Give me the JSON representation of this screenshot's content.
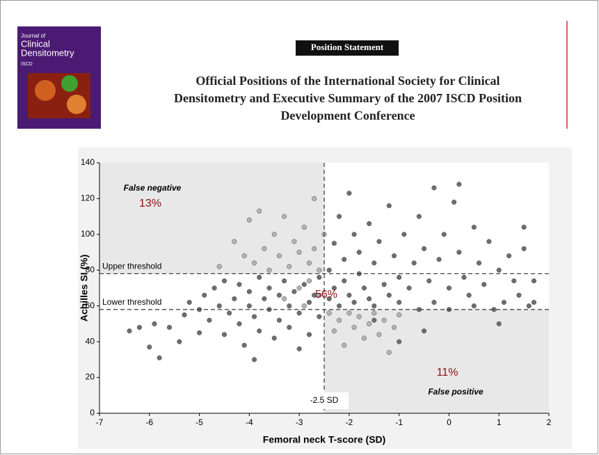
{
  "header": {
    "journal_cover": {
      "line1": "Journal of",
      "line2": "Clinical",
      "line3": "Densitometry",
      "society": "ISCD"
    },
    "label": "Position Statement",
    "title_lines": [
      "Official Positions of the International Society for Clinical",
      "Densitometry and Executive Summary of the 2007 ISCD Position",
      "Development Conference"
    ]
  },
  "chart_data": {
    "type": "scatter",
    "x_label": "Femoral neck T-score (SD)",
    "y_label": "Achilles SI (%)",
    "xlim": [
      -7,
      2
    ],
    "xticks": [
      -7,
      -6,
      -5,
      -4,
      -3,
      -2,
      -1,
      0,
      1,
      2
    ],
    "ylim": [
      0,
      140
    ],
    "yticks": [
      0,
      20,
      40,
      60,
      80,
      100,
      120,
      140
    ],
    "thresholds": {
      "upper": 78,
      "lower": 58,
      "tscore": -2.5
    },
    "threshold_labels": {
      "upper": "Upper threshold",
      "lower": "Lower threshold",
      "tscore": "-2.5 SD"
    },
    "annotations": [
      "False negative",
      "13%",
      "56%",
      "11%",
      "False positive"
    ],
    "series": [
      {
        "color": "#b4b4b4",
        "x": [
          -4.6,
          -4.3,
          -4.1,
          -4.0,
          -3.9,
          -3.8,
          -3.7,
          -3.6,
          -3.5,
          -3.4,
          -3.3,
          -3.2,
          -3.1,
          -3.0,
          -2.9,
          -2.8,
          -2.7,
          -2.7,
          -2.6,
          -2.5,
          -2.4,
          -2.3,
          -2.2,
          -2.1,
          -2.0,
          -1.9,
          -1.8,
          -1.7,
          -1.6,
          -1.5,
          -1.4,
          -1.3,
          -1.2,
          -1.1,
          -1.0,
          -3.0,
          -2.8,
          -2.6,
          -3.3,
          -2.9
        ],
        "values": [
          82,
          96,
          88,
          108,
          84,
          113,
          92,
          80,
          100,
          88,
          110,
          82,
          96,
          90,
          104,
          84,
          120,
          92,
          80,
          100,
          56,
          46,
          52,
          38,
          56,
          48,
          54,
          42,
          50,
          56,
          44,
          52,
          34,
          48,
          55,
          70,
          74,
          66,
          64,
          60
        ]
      },
      {
        "color": "#6e6e6e",
        "x": [
          -6.4,
          -6.2,
          -6.0,
          -5.9,
          -5.8,
          -5.6,
          -5.4,
          -5.3,
          -5.2,
          -5.0,
          -5.0,
          -4.9,
          -4.8,
          -4.7,
          -4.6,
          -4.5,
          -4.5,
          -4.4,
          -4.3,
          -4.2,
          -4.2,
          -4.1,
          -4.0,
          -4.0,
          -3.9,
          -3.9,
          -3.8,
          -3.8,
          -3.7,
          -3.6,
          -3.6,
          -3.5,
          -3.4,
          -3.4,
          -3.3,
          -3.2,
          -3.2,
          -3.1,
          -3.0,
          -3.0,
          -2.9,
          -2.8,
          -2.8,
          -2.7,
          -2.6,
          -2.6,
          -2.4,
          -2.4,
          -2.3,
          -2.3,
          -2.2,
          -2.2,
          -2.1,
          -2.1,
          -2.0,
          -2.0,
          -1.9,
          -1.9,
          -1.8,
          -1.8,
          -1.7,
          -1.6,
          -1.6,
          -1.5,
          -1.5,
          -1.4,
          -1.3,
          -1.2,
          -1.2,
          -1.1,
          -1.0,
          -1.0,
          -0.9,
          -0.8,
          -0.7,
          -0.6,
          -0.6,
          -0.5,
          -0.4,
          -0.3,
          -0.3,
          -0.2,
          -0.1,
          0,
          0,
          0.1,
          0.2,
          0.2,
          0.3,
          0.4,
          0.5,
          0.5,
          0.6,
          0.7,
          0.8,
          0.9,
          1.0,
          1.0,
          1.1,
          1.2,
          1.3,
          1.4,
          1.5,
          1.5,
          1.6,
          1.7,
          1.7,
          -1.5,
          -0.5,
          -1.0
        ],
        "values": [
          46,
          48,
          37,
          50,
          31,
          48,
          40,
          55,
          62,
          45,
          58,
          66,
          52,
          70,
          60,
          44,
          74,
          56,
          64,
          50,
          72,
          38,
          60,
          68,
          30,
          54,
          76,
          46,
          64,
          58,
          70,
          42,
          66,
          52,
          74,
          60,
          48,
          68,
          36,
          56,
          72,
          62,
          44,
          66,
          54,
          76,
          80,
          64,
          95,
          70,
          110,
          60,
          86,
          74,
          123,
          66,
          100,
          62,
          90,
          78,
          70,
          106,
          64,
          84,
          60,
          96,
          72,
          116,
          66,
          88,
          76,
          62,
          100,
          70,
          84,
          58,
          110,
          92,
          74,
          62,
          126,
          86,
          100,
          70,
          58,
          118,
          90,
          128,
          76,
          66,
          104,
          60,
          84,
          72,
          96,
          58,
          80,
          50,
          62,
          88,
          74,
          66,
          92,
          104,
          60,
          74,
          62,
          52,
          46,
          40
        ]
      }
    ]
  }
}
